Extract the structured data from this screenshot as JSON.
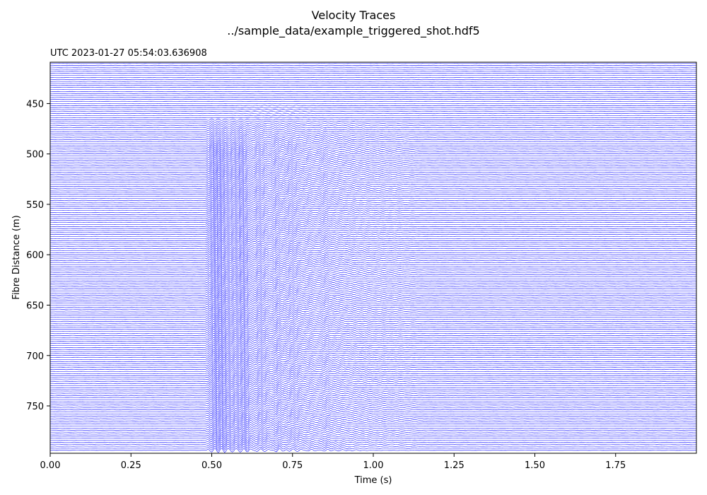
{
  "chart_data": {
    "type": "line",
    "title": "Velocity Traces",
    "subtitle": "../sample_data/example_triggered_shot.hdf5",
    "timestamp": "UTC 2023-01-27 05:54:03.636908",
    "xlabel": "Time (s)",
    "ylabel": "Fibre Distance (m)",
    "xlim": [
      0.0,
      2.0
    ],
    "ylim": [
      797,
      409
    ],
    "y_inverted": true,
    "x_ticks": [
      "0.00",
      "0.25",
      "0.50",
      "0.75",
      "1.00",
      "1.25",
      "1.50",
      "1.75"
    ],
    "x_tick_values": [
      0.0,
      0.25,
      0.5,
      0.75,
      1.0,
      1.25,
      1.5,
      1.75
    ],
    "y_ticks": [
      "450",
      "500",
      "550",
      "600",
      "650",
      "700",
      "750"
    ],
    "y_tick_values": [
      450,
      500,
      550,
      600,
      650,
      700,
      750
    ],
    "trace_color": "#0000ff",
    "trace_distance_start": 410,
    "trace_distance_end": 795,
    "trace_spacing_m": 2,
    "first_arrival_start_distance": 465,
    "first_arrival_time_s": 0.49,
    "signal_end_time_s": 1.15,
    "grid": false
  }
}
